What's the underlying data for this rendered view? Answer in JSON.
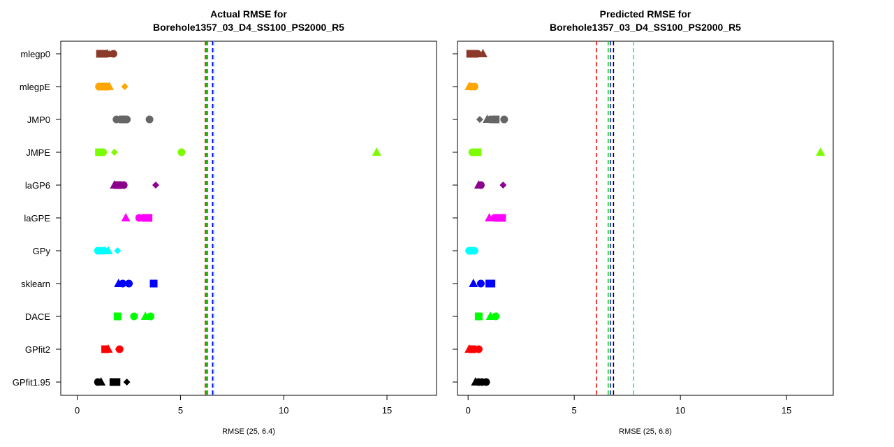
{
  "chart_data": [
    {
      "type": "scatter",
      "title_lines": [
        "Actual RMSE for",
        "Borehole1357_03_D4_SS100_PS2000_R5"
      ],
      "xlabel": "RMSE (25, 6.4)",
      "ylabel": "",
      "xlim": [
        -0.8,
        17.4
      ],
      "xticks": [
        0,
        5,
        10,
        15
      ],
      "grid": false,
      "categories": [
        "mlegp0",
        "mlegpE",
        "JMP0",
        "JMPE",
        "laGP6",
        "laGPE",
        "GPy",
        "sklearn",
        "DACE",
        "GPfit2",
        "GPfit1.95"
      ],
      "category_colors": [
        "#8b3a2a",
        "#ffa500",
        "#666666",
        "#7cfc00",
        "#8b008b",
        "#ff00ff",
        "#00ffff",
        "#0000ff",
        "#00ff00",
        "#ff0000",
        "#000000"
      ],
      "series": [
        {
          "category": "mlegp0",
          "points": [
            {
              "x": 1.1,
              "m": "square"
            },
            {
              "x": 1.3,
              "m": "square"
            },
            {
              "x": 1.45,
              "m": "triangle"
            },
            {
              "x": 1.55,
              "m": "diamond"
            },
            {
              "x": 1.75,
              "m": "circle"
            }
          ]
        },
        {
          "category": "mlegpE",
          "points": [
            {
              "x": 1.05,
              "m": "circle"
            },
            {
              "x": 1.15,
              "m": "square"
            },
            {
              "x": 1.25,
              "m": "circle"
            },
            {
              "x": 1.35,
              "m": "square"
            },
            {
              "x": 1.55,
              "m": "triangle"
            },
            {
              "x": 2.3,
              "m": "diamond"
            }
          ]
        },
        {
          "category": "JMP0",
          "points": [
            {
              "x": 1.9,
              "m": "circle"
            },
            {
              "x": 2.2,
              "m": "square"
            },
            {
              "x": 2.35,
              "m": "diamond"
            },
            {
              "x": 2.4,
              "m": "circle"
            },
            {
              "x": 3.5,
              "m": "diamond"
            },
            {
              "x": 3.5,
              "m": "circle"
            }
          ]
        },
        {
          "category": "JMPE",
          "points": [
            {
              "x": 1.05,
              "m": "square"
            },
            {
              "x": 1.25,
              "m": "circle"
            },
            {
              "x": 1.8,
              "m": "diamond"
            },
            {
              "x": 5.05,
              "m": "circle"
            },
            {
              "x": 14.5,
              "m": "triangle"
            }
          ]
        },
        {
          "category": "laGP6",
          "points": [
            {
              "x": 1.8,
              "m": "triangle"
            },
            {
              "x": 1.95,
              "m": "square"
            },
            {
              "x": 2.1,
              "m": "circle"
            },
            {
              "x": 2.25,
              "m": "circle"
            },
            {
              "x": 3.8,
              "m": "diamond"
            }
          ]
        },
        {
          "category": "laGPE",
          "points": [
            {
              "x": 2.35,
              "m": "triangle"
            },
            {
              "x": 3.0,
              "m": "circle"
            },
            {
              "x": 3.3,
              "m": "square"
            },
            {
              "x": 3.45,
              "m": "square"
            }
          ]
        },
        {
          "category": "GPy",
          "points": [
            {
              "x": 1.0,
              "m": "circle"
            },
            {
              "x": 1.15,
              "m": "circle"
            },
            {
              "x": 1.3,
              "m": "circle"
            },
            {
              "x": 1.5,
              "m": "triangle"
            },
            {
              "x": 1.95,
              "m": "diamond"
            }
          ]
        },
        {
          "category": "sklearn",
          "points": [
            {
              "x": 2.0,
              "m": "triangle"
            },
            {
              "x": 2.2,
              "m": "circle"
            },
            {
              "x": 2.5,
              "m": "circle"
            },
            {
              "x": 3.7,
              "m": "square"
            }
          ]
        },
        {
          "category": "DACE",
          "points": [
            {
              "x": 1.95,
              "m": "square"
            },
            {
              "x": 2.75,
              "m": "circle"
            },
            {
              "x": 3.3,
              "m": "triangle"
            },
            {
              "x": 3.55,
              "m": "circle"
            }
          ]
        },
        {
          "category": "GPfit2",
          "points": [
            {
              "x": 1.35,
              "m": "square"
            },
            {
              "x": 1.5,
              "m": "triangle"
            },
            {
              "x": 2.0,
              "m": "diamond"
            },
            {
              "x": 2.05,
              "m": "circle"
            }
          ]
        },
        {
          "category": "GPfit1.95",
          "points": [
            {
              "x": 1.0,
              "m": "circle"
            },
            {
              "x": 1.15,
              "m": "triangle"
            },
            {
              "x": 1.75,
              "m": "square"
            },
            {
              "x": 1.9,
              "m": "square"
            },
            {
              "x": 2.4,
              "m": "diamond"
            }
          ]
        }
      ],
      "vlines": [
        {
          "x": 6.2,
          "color": "#ff0000"
        },
        {
          "x": 6.25,
          "color": "#00cc00"
        },
        {
          "x": 6.3,
          "color": "#8b3a2a"
        },
        {
          "x": 6.55,
          "color": "#0000ff"
        },
        {
          "x": 6.6,
          "color": "#00ccff"
        }
      ]
    },
    {
      "type": "scatter",
      "title_lines": [
        "Predicted RMSE for",
        "Borehole1357_03_D4_SS100_PS2000_R5"
      ],
      "xlabel": "RMSE (25, 6.8)",
      "ylabel": "",
      "xlim": [
        -0.5,
        17.2
      ],
      "xticks": [
        0,
        5,
        10,
        15
      ],
      "grid": false,
      "categories": [
        "mlegp0",
        "mlegpE",
        "JMP0",
        "JMPE",
        "laGP6",
        "laGPE",
        "GPy",
        "sklearn",
        "DACE",
        "GPfit2",
        "GPfit1.95"
      ],
      "category_colors": [
        "#8b3a2a",
        "#ffa500",
        "#666666",
        "#7cfc00",
        "#8b008b",
        "#ff00ff",
        "#00ffff",
        "#0000ff",
        "#00ff00",
        "#ff0000",
        "#000000"
      ],
      "series": [
        {
          "category": "mlegp0",
          "points": [
            {
              "x": 0.1,
              "m": "square"
            },
            {
              "x": 0.25,
              "m": "square"
            },
            {
              "x": 0.45,
              "m": "circle"
            },
            {
              "x": 0.7,
              "m": "triangle"
            }
          ]
        },
        {
          "category": "mlegpE",
          "points": [
            {
              "x": 0.05,
              "m": "triangle"
            },
            {
              "x": 0.15,
              "m": "circle"
            },
            {
              "x": 0.3,
              "m": "circle"
            }
          ]
        },
        {
          "category": "JMP0",
          "points": [
            {
              "x": 0.55,
              "m": "diamond"
            },
            {
              "x": 0.9,
              "m": "triangle"
            },
            {
              "x": 1.05,
              "m": "circle"
            },
            {
              "x": 1.3,
              "m": "square"
            },
            {
              "x": 1.7,
              "m": "circle"
            }
          ]
        },
        {
          "category": "JMPE",
          "points": [
            {
              "x": 0.2,
              "m": "circle"
            },
            {
              "x": 0.45,
              "m": "square"
            },
            {
              "x": 16.6,
              "m": "triangle"
            }
          ]
        },
        {
          "category": "laGP6",
          "points": [
            {
              "x": 0.5,
              "m": "triangle"
            },
            {
              "x": 0.6,
              "m": "circle"
            },
            {
              "x": 1.65,
              "m": "diamond"
            }
          ]
        },
        {
          "category": "laGPE",
          "points": [
            {
              "x": 1.0,
              "m": "triangle"
            },
            {
              "x": 1.25,
              "m": "circle"
            },
            {
              "x": 1.45,
              "m": "square"
            },
            {
              "x": 1.6,
              "m": "square"
            }
          ]
        },
        {
          "category": "GPy",
          "points": [
            {
              "x": 0.05,
              "m": "circle"
            },
            {
              "x": 0.15,
              "m": "circle"
            },
            {
              "x": 0.3,
              "m": "circle"
            }
          ]
        },
        {
          "category": "sklearn",
          "points": [
            {
              "x": 0.25,
              "m": "triangle"
            },
            {
              "x": 0.6,
              "m": "circle"
            },
            {
              "x": 1.0,
              "m": "square"
            },
            {
              "x": 1.1,
              "m": "square"
            }
          ]
        },
        {
          "category": "DACE",
          "points": [
            {
              "x": 0.5,
              "m": "square"
            },
            {
              "x": 1.05,
              "m": "triangle"
            },
            {
              "x": 1.3,
              "m": "circle"
            }
          ]
        },
        {
          "category": "GPfit2",
          "points": [
            {
              "x": 0.05,
              "m": "triangle"
            },
            {
              "x": 0.2,
              "m": "square"
            },
            {
              "x": 0.5,
              "m": "circle"
            }
          ]
        },
        {
          "category": "GPfit1.95",
          "points": [
            {
              "x": 0.35,
              "m": "triangle"
            },
            {
              "x": 0.5,
              "m": "circle"
            },
            {
              "x": 0.65,
              "m": "circle"
            },
            {
              "x": 0.85,
              "m": "circle"
            }
          ]
        }
      ],
      "vlines": [
        {
          "x": 6.05,
          "color": "#ff0000"
        },
        {
          "x": 6.6,
          "color": "#00cc00"
        },
        {
          "x": 6.7,
          "color": "#0000ff"
        },
        {
          "x": 6.85,
          "color": "#000000"
        },
        {
          "x": 7.8,
          "color": "#00e5e5"
        }
      ]
    }
  ]
}
